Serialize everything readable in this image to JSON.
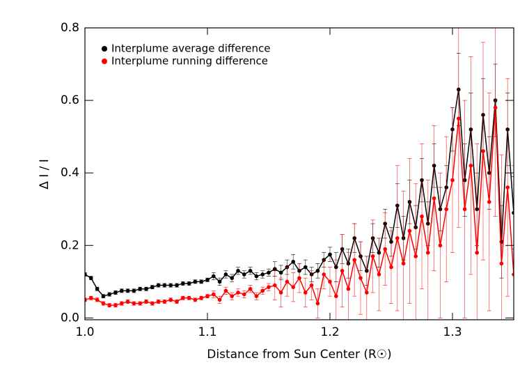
{
  "chart_data": {
    "type": "scatter",
    "xlabel": "Distance from Sun Center (R☉)",
    "ylabel": "Δ I / I",
    "x": [
      1.0,
      1.005,
      1.01,
      1.015,
      1.02,
      1.025,
      1.03,
      1.035,
      1.04,
      1.045,
      1.05,
      1.055,
      1.06,
      1.065,
      1.07,
      1.075,
      1.08,
      1.085,
      1.09,
      1.095,
      1.1,
      1.105,
      1.11,
      1.115,
      1.12,
      1.125,
      1.13,
      1.135,
      1.14,
      1.145,
      1.15,
      1.155,
      1.16,
      1.165,
      1.17,
      1.175,
      1.18,
      1.185,
      1.19,
      1.195,
      1.2,
      1.205,
      1.21,
      1.215,
      1.22,
      1.225,
      1.23,
      1.235,
      1.24,
      1.245,
      1.25,
      1.255,
      1.26,
      1.265,
      1.27,
      1.275,
      1.28,
      1.285,
      1.29,
      1.295,
      1.3,
      1.305,
      1.31,
      1.315,
      1.32,
      1.325,
      1.33,
      1.335,
      1.34,
      1.345,
      1.35
    ],
    "series": [
      {
        "name": "Interplume average difference",
        "color": "#000000",
        "values": [
          0.12,
          0.11,
          0.08,
          0.06,
          0.065,
          0.07,
          0.075,
          0.075,
          0.075,
          0.08,
          0.08,
          0.085,
          0.09,
          0.09,
          0.09,
          0.09,
          0.095,
          0.095,
          0.1,
          0.1,
          0.105,
          0.115,
          0.1,
          0.12,
          0.11,
          0.13,
          0.12,
          0.13,
          0.115,
          0.12,
          0.125,
          0.135,
          0.125,
          0.14,
          0.155,
          0.13,
          0.14,
          0.12,
          0.13,
          0.16,
          0.175,
          0.14,
          0.19,
          0.15,
          0.22,
          0.17,
          0.13,
          0.22,
          0.18,
          0.26,
          0.21,
          0.31,
          0.22,
          0.32,
          0.25,
          0.38,
          0.26,
          0.42,
          0.3,
          0.36,
          0.52,
          0.63,
          0.38,
          0.52,
          0.3,
          0.56,
          0.4,
          0.6,
          0.21,
          0.52,
          0.29
        ],
        "errors": [
          0.005,
          0.005,
          0.005,
          0.005,
          0.005,
          0.005,
          0.005,
          0.005,
          0.005,
          0.005,
          0.005,
          0.005,
          0.005,
          0.005,
          0.005,
          0.005,
          0.005,
          0.005,
          0.005,
          0.005,
          0.005,
          0.01,
          0.01,
          0.01,
          0.01,
          0.01,
          0.01,
          0.01,
          0.01,
          0.01,
          0.01,
          0.02,
          0.02,
          0.02,
          0.02,
          0.02,
          0.02,
          0.02,
          0.02,
          0.02,
          0.02,
          0.04,
          0.04,
          0.04,
          0.04,
          0.04,
          0.04,
          0.04,
          0.04,
          0.04,
          0.04,
          0.06,
          0.06,
          0.06,
          0.06,
          0.06,
          0.06,
          0.06,
          0.06,
          0.06,
          0.06,
          0.1,
          0.1,
          0.1,
          0.1,
          0.1,
          0.1,
          0.1,
          0.1,
          0.1,
          0.1
        ]
      },
      {
        "name": "Interplume running difference",
        "color": "#ff0000",
        "values": [
          0.05,
          0.055,
          0.05,
          0.04,
          0.035,
          0.035,
          0.04,
          0.045,
          0.04,
          0.04,
          0.045,
          0.04,
          0.045,
          0.045,
          0.05,
          0.045,
          0.055,
          0.055,
          0.05,
          0.055,
          0.06,
          0.065,
          0.05,
          0.075,
          0.06,
          0.07,
          0.065,
          0.08,
          0.06,
          0.075,
          0.085,
          0.09,
          0.07,
          0.1,
          0.085,
          0.11,
          0.07,
          0.09,
          0.04,
          0.12,
          0.1,
          0.06,
          0.13,
          0.08,
          0.16,
          0.11,
          0.07,
          0.17,
          0.12,
          0.19,
          0.14,
          0.22,
          0.15,
          0.24,
          0.17,
          0.28,
          0.18,
          0.33,
          0.2,
          0.3,
          0.38,
          0.55,
          0.3,
          0.42,
          0.18,
          0.46,
          0.32,
          0.58,
          0.15,
          0.36,
          0.12
        ],
        "errors": [
          0.005,
          0.005,
          0.005,
          0.005,
          0.005,
          0.005,
          0.005,
          0.005,
          0.005,
          0.005,
          0.005,
          0.005,
          0.005,
          0.005,
          0.005,
          0.005,
          0.005,
          0.005,
          0.005,
          0.005,
          0.005,
          0.01,
          0.01,
          0.01,
          0.01,
          0.01,
          0.01,
          0.01,
          0.01,
          0.01,
          0.01,
          0.04,
          0.04,
          0.04,
          0.04,
          0.04,
          0.04,
          0.04,
          0.04,
          0.04,
          0.04,
          0.1,
          0.1,
          0.1,
          0.1,
          0.1,
          0.1,
          0.1,
          0.1,
          0.1,
          0.1,
          0.2,
          0.2,
          0.2,
          0.2,
          0.2,
          0.2,
          0.2,
          0.2,
          0.2,
          0.2,
          0.3,
          0.3,
          0.3,
          0.3,
          0.3,
          0.3,
          0.3,
          0.3,
          0.3,
          0.3
        ]
      }
    ],
    "xlim": [
      1.0,
      1.35
    ],
    "ylim": [
      -0.005,
      0.8
    ],
    "xticks": [
      {
        "value": 1.0,
        "label": "1.0"
      },
      1.1,
      1.2,
      1.3
    ],
    "yticks": [
      {
        "value": 0,
        "label": "0.0"
      },
      0.2,
      0.4,
      0.6,
      0.8
    ],
    "legend": "upper left"
  }
}
